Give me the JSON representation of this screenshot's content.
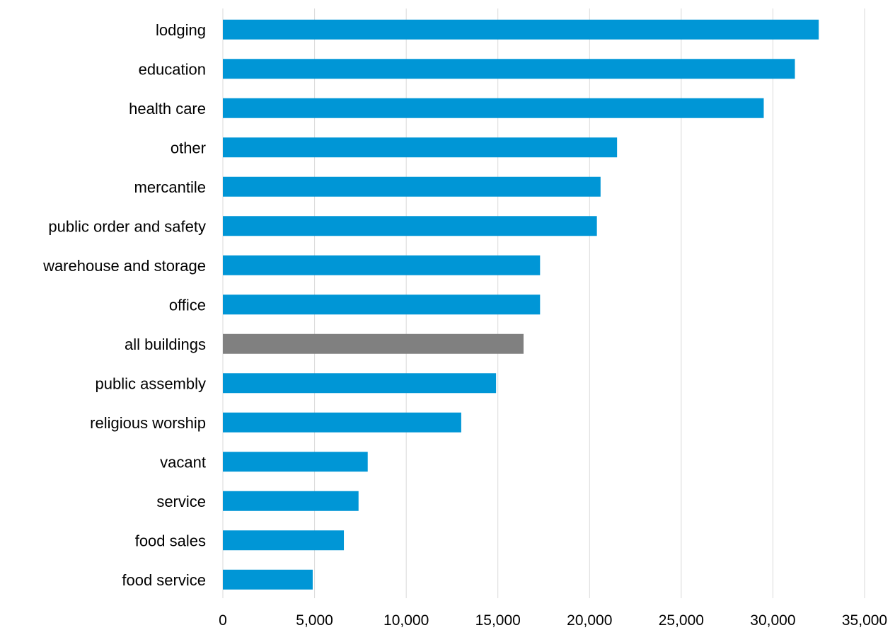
{
  "chart_data": {
    "type": "bar",
    "orientation": "horizontal",
    "categories": [
      "lodging",
      "education",
      "health care",
      "other",
      "mercantile",
      "public order and safety",
      "warehouse and storage",
      "office",
      "all buildings",
      "public assembly",
      "religious worship",
      "vacant",
      "service",
      "food sales",
      "food service"
    ],
    "values": [
      32500,
      31200,
      29500,
      21500,
      20600,
      20400,
      17300,
      17300,
      16400,
      14900,
      13000,
      7900,
      7400,
      6600,
      4900
    ],
    "highlight_category": "all buildings",
    "colors": {
      "bar": "#0096D6",
      "highlight": "#808080",
      "grid": "#D9D9D9",
      "text": "#000000"
    },
    "xlim": [
      0,
      35000
    ],
    "xticks": [
      0,
      5000,
      10000,
      15000,
      20000,
      25000,
      30000,
      35000
    ],
    "xtick_labels": [
      "0",
      "5,000",
      "10,000",
      "15,000",
      "20,000",
      "25,000",
      "30,000",
      "35,000"
    ],
    "grid": true,
    "title": "",
    "xlabel": "",
    "ylabel": ""
  }
}
